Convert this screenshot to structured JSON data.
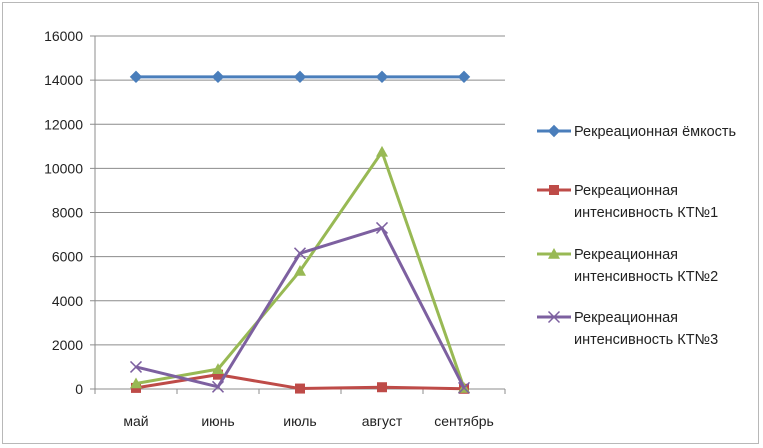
{
  "chart_data": {
    "type": "line",
    "title": "",
    "xlabel": "",
    "ylabel": "",
    "categories": [
      "май",
      "июнь",
      "июль",
      "август",
      "сентябрь"
    ],
    "ylim": [
      0,
      16000
    ],
    "yticks": [
      0,
      2000,
      4000,
      6000,
      8000,
      10000,
      12000,
      14000,
      16000
    ],
    "grid": "horizontal",
    "legend_position": "right",
    "series": [
      {
        "name": "Рекреационная ёмкость",
        "name_lines": [
          "Рекреационная ёмкость"
        ],
        "values": [
          14150,
          14150,
          14150,
          14150,
          14150
        ],
        "color": "#4a7ebb",
        "marker": "diamond"
      },
      {
        "name": "Рекреационная интенсивность КТ№1",
        "name_lines": [
          "Рекреационная",
          "интенсивность КТ№1"
        ],
        "values": [
          50,
          650,
          20,
          80,
          10
        ],
        "color": "#be4b48",
        "marker": "square"
      },
      {
        "name": "Рекреационная интенсивность КТ№2",
        "name_lines": [
          "Рекреационная",
          "интенсивность КТ№2"
        ],
        "values": [
          250,
          900,
          5350,
          10750,
          50
        ],
        "color": "#98b954",
        "marker": "triangle"
      },
      {
        "name": "Рекреационная интенсивность КТ№3",
        "name_lines": [
          "Рекреационная",
          "интенсивность КТ№3"
        ],
        "values": [
          1000,
          100,
          6150,
          7300,
          50
        ],
        "color": "#7d60a0",
        "marker": "x"
      }
    ]
  }
}
